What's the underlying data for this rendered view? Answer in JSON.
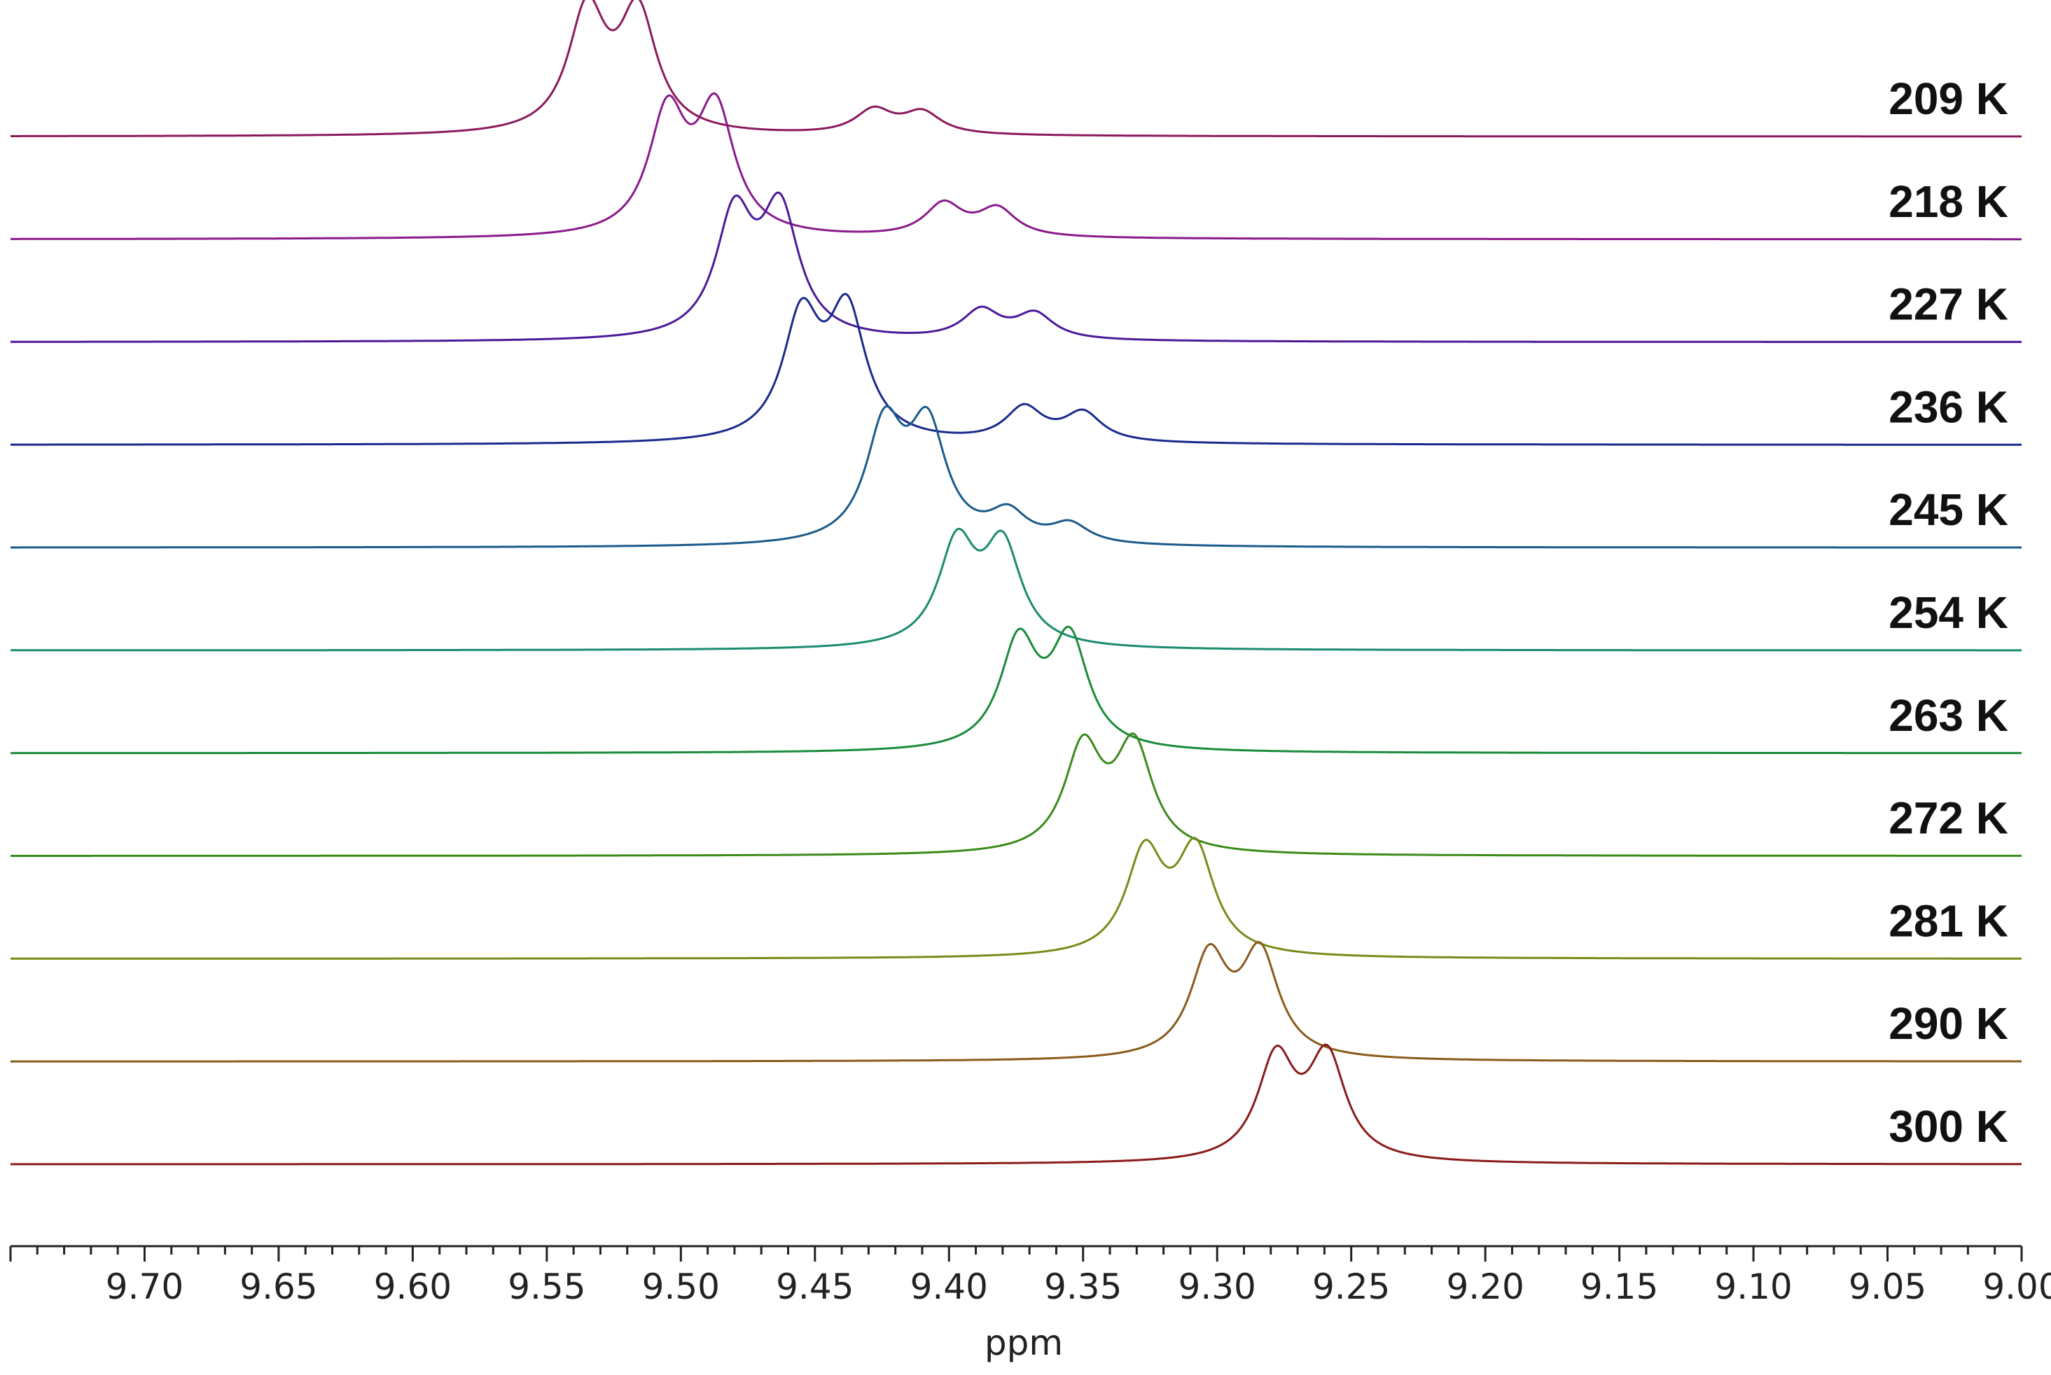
{
  "chart_data": {
    "type": "line",
    "title": "",
    "xlabel": "ppm",
    "ylabel": "",
    "x_range": [
      9.75,
      9.0
    ],
    "x_reversed": true,
    "grid": false,
    "legend": "none",
    "x_ticks": [
      "9.70",
      "9.65",
      "9.60",
      "9.55",
      "9.50",
      "9.45",
      "9.40",
      "9.35",
      "9.30",
      "9.25",
      "9.20",
      "9.15",
      "9.10",
      "9.05",
      "9.00"
    ],
    "series": [
      {
        "name": "209 K",
        "color": "#8b1a5c",
        "peaks": [
          {
            "x": 9.535,
            "h": 1.0
          },
          {
            "x": 9.516,
            "h": 0.98
          },
          {
            "x": 9.428,
            "h": 0.2
          },
          {
            "x": 9.41,
            "h": 0.18
          }
        ]
      },
      {
        "name": "218 K",
        "color": "#8b1a8b",
        "peaks": [
          {
            "x": 9.505,
            "h": 1.0
          },
          {
            "x": 9.487,
            "h": 1.02
          },
          {
            "x": 9.402,
            "h": 0.27
          },
          {
            "x": 9.382,
            "h": 0.23
          }
        ]
      },
      {
        "name": "227 K",
        "color": "#4a1a9a",
        "peaks": [
          {
            "x": 9.48,
            "h": 1.0
          },
          {
            "x": 9.463,
            "h": 1.03
          },
          {
            "x": 9.388,
            "h": 0.24
          },
          {
            "x": 9.368,
            "h": 0.21
          }
        ]
      },
      {
        "name": "236 K",
        "color": "#1a2a8b",
        "peaks": [
          {
            "x": 9.455,
            "h": 1.0
          },
          {
            "x": 9.438,
            "h": 1.04
          },
          {
            "x": 9.372,
            "h": 0.28
          },
          {
            "x": 9.35,
            "h": 0.24
          }
        ]
      },
      {
        "name": "245 K",
        "color": "#1a5a8b",
        "peaks": [
          {
            "x": 9.424,
            "h": 0.95
          },
          {
            "x": 9.408,
            "h": 0.93
          },
          {
            "x": 9.378,
            "h": 0.24
          },
          {
            "x": 9.355,
            "h": 0.16
          }
        ]
      },
      {
        "name": "254 K",
        "color": "#1a8b6e",
        "peaks": [
          {
            "x": 9.397,
            "h": 0.84
          },
          {
            "x": 9.38,
            "h": 0.82
          }
        ]
      },
      {
        "name": "263 K",
        "color": "#1a8b3a",
        "peaks": [
          {
            "x": 9.374,
            "h": 0.88
          },
          {
            "x": 9.355,
            "h": 0.9
          }
        ]
      },
      {
        "name": "272 K",
        "color": "#3a8b1a",
        "peaks": [
          {
            "x": 9.35,
            "h": 0.86
          },
          {
            "x": 9.331,
            "h": 0.87
          }
        ]
      },
      {
        "name": "281 K",
        "color": "#7a8b1a",
        "peaks": [
          {
            "x": 9.327,
            "h": 0.84
          },
          {
            "x": 9.308,
            "h": 0.86
          }
        ]
      },
      {
        "name": "290 K",
        "color": "#8b5a1a",
        "peaks": [
          {
            "x": 9.303,
            "h": 0.83
          },
          {
            "x": 9.284,
            "h": 0.85
          }
        ]
      },
      {
        "name": "300 K",
        "color": "#8b1a1a",
        "peaks": [
          {
            "x": 9.278,
            "h": 0.84
          },
          {
            "x": 9.259,
            "h": 0.85
          }
        ]
      }
    ]
  }
}
